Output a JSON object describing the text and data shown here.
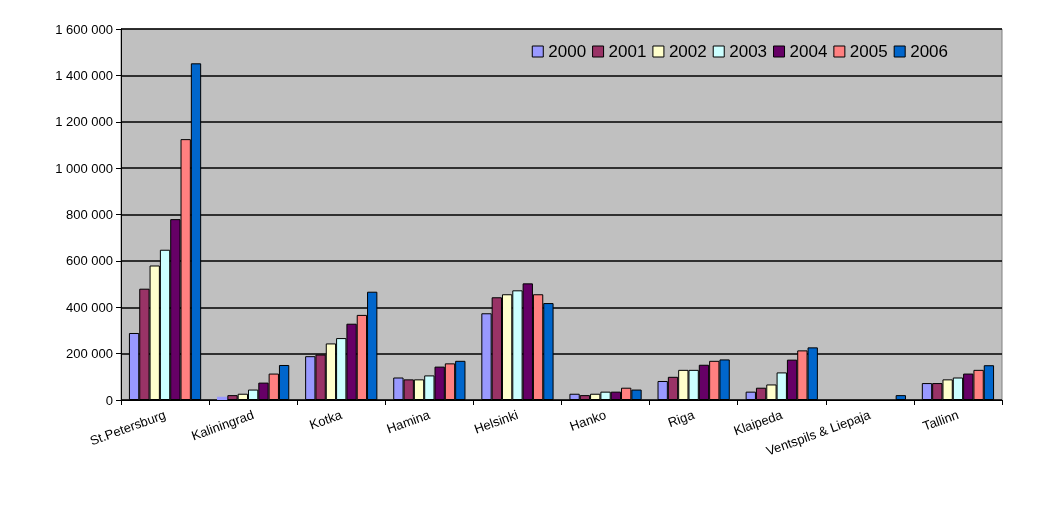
{
  "chart_data": {
    "type": "bar",
    "categories": [
      "St.Petersburg",
      "Kaliningrad",
      "Kotka",
      "Hamina",
      "Helsinki",
      "Hanko",
      "Riga",
      "Klaipeda",
      "Ventspils & Liepaja",
      "Tallinn"
    ],
    "series": [
      {
        "name": "2000",
        "color": "#9999ff",
        "values": [
          289000,
          14000,
          189000,
          97000,
          374000,
          27000,
          82000,
          36000,
          null,
          73000
        ]
      },
      {
        "name": "2001",
        "color": "#993366",
        "values": [
          480000,
          21000,
          196000,
          89000,
          443000,
          21000,
          100000,
          53000,
          null,
          73000
        ]
      },
      {
        "name": "2002",
        "color": "#ffffcc",
        "values": [
          580000,
          27000,
          244000,
          89000,
          456000,
          27000,
          130000,
          67000,
          null,
          89000
        ]
      },
      {
        "name": "2003",
        "color": "#ccffff",
        "values": [
          648000,
          45000,
          267000,
          106000,
          473000,
          36000,
          130000,
          119000,
          null,
          97000
        ]
      },
      {
        "name": "2004",
        "color": "#660066",
        "values": [
          780000,
          75000,
          329000,
          144000,
          503000,
          36000,
          152000,
          174000,
          null,
          114000
        ]
      },
      {
        "name": "2005",
        "color": "#ff8080",
        "values": [
          1125000,
          114000,
          367000,
          158000,
          456000,
          53000,
          169000,
          214000,
          null,
          130000
        ]
      },
      {
        "name": "2006",
        "color": "#0066cc",
        "values": [
          1452000,
          151000,
          467000,
          169000,
          418000,
          45000,
          175000,
          227000,
          21000,
          150000
        ]
      }
    ],
    "ylim": [
      0,
      1600000
    ],
    "yticks": [
      {
        "value": 0,
        "label": "0"
      },
      {
        "value": 200000,
        "label": "200 000"
      },
      {
        "value": 400000,
        "label": "400 000"
      },
      {
        "value": 600000,
        "label": "600 000"
      },
      {
        "value": 800000,
        "label": "800 000"
      },
      {
        "value": 1000000,
        "label": "1 000 000"
      },
      {
        "value": 1200000,
        "label": "1 200 000"
      },
      {
        "value": 1400000,
        "label": "1 400 000"
      },
      {
        "value": 1600000,
        "label": "1 600 000"
      }
    ],
    "grid": "y",
    "legend": "top right"
  }
}
